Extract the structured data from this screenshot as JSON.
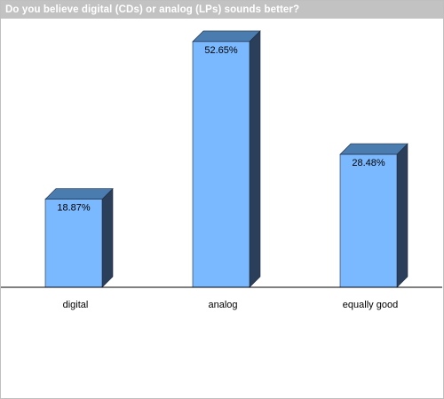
{
  "chart_data": {
    "type": "bar",
    "title": "Do you believe digital (CDs) or analog (LPs) sounds better?",
    "categories": [
      "digital",
      "analog",
      "equally good"
    ],
    "values": [
      18.87,
      52.65,
      28.48
    ],
    "value_labels": [
      "18.87%",
      "52.65%",
      "28.48%"
    ],
    "ylim": [
      0,
      57
    ],
    "grid": false,
    "legend": "none",
    "colors": {
      "bar_front": "#7ab8ff",
      "bar_top": "#4a7cb0",
      "bar_side": "#2b3f5a",
      "outline": "#1e2c40",
      "title_bg": "#c2c2c2",
      "title_text": "#ffffff"
    }
  }
}
